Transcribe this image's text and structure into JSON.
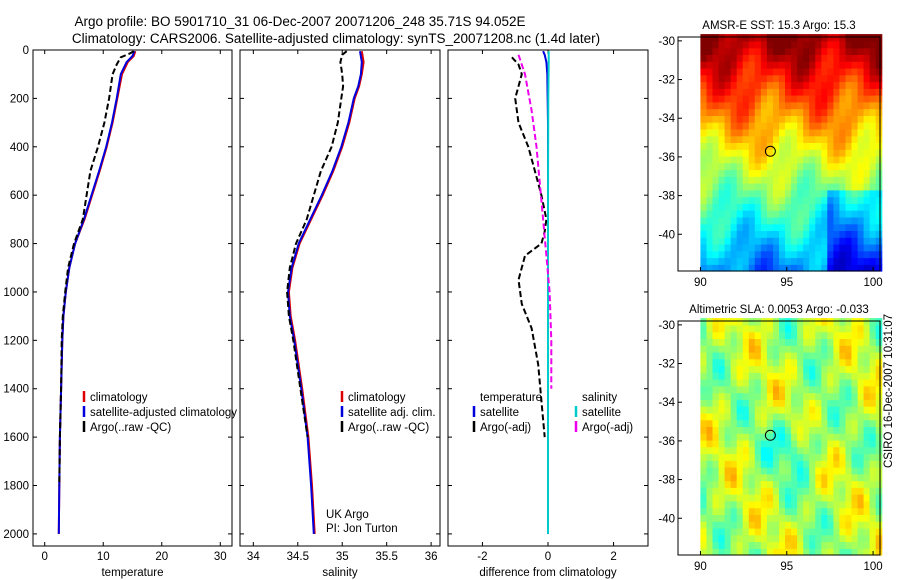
{
  "title": {
    "line1": "Argo profile: BO 5901710_31 06-Dec-2007 20071206_248 35.71S 94.052E",
    "line2": "Climatology: CARS2006. Satellite-adjusted climatology: synTS_20071208.nc (1.4d later)"
  },
  "colors": {
    "climatology": "#dd0000",
    "satellite": "#0000dd",
    "argo": "#000000",
    "sal_satellite": "#00cccc",
    "sal_argo": "#ee00ee"
  },
  "side_label": "CSIRO 16-Dec-2007 10:31:07",
  "chart_data": [
    {
      "id": "temperature",
      "type": "line",
      "xlabel": "temperature",
      "ylabel": "",
      "ylim": [
        0,
        2050
      ],
      "xlim": [
        -2,
        32
      ],
      "y_reversed": true,
      "yticks": [
        0,
        200,
        400,
        600,
        800,
        1000,
        1200,
        1400,
        1600,
        1800,
        2000
      ],
      "xticks": [
        0,
        10,
        20,
        30
      ],
      "show_yticklabels": true,
      "legend": {
        "placement": "lower-right",
        "entries": [
          "climatology",
          "satellite-adjusted climatology",
          "Argo(..raw -QC)"
        ]
      },
      "series": [
        {
          "name": "climatology",
          "color": "#dd0000",
          "style": "solid",
          "x": [
            15.5,
            15.2,
            14.2,
            13.2,
            12.4,
            11.6,
            10.6,
            9.4,
            8.1,
            6.8,
            5.2,
            4.2,
            3.6,
            3.2,
            3.0,
            2.8,
            2.6,
            2.5,
            2.4
          ],
          "y": [
            5,
            25,
            50,
            100,
            200,
            300,
            400,
            500,
            600,
            700,
            800,
            900,
            1000,
            1100,
            1200,
            1400,
            1600,
            1800,
            2000
          ]
        },
        {
          "name": "satellite-adjusted climatology",
          "color": "#0000dd",
          "style": "solid",
          "x": [
            15.3,
            15.0,
            14.0,
            13.0,
            12.3,
            11.5,
            10.5,
            9.3,
            8.0,
            6.7,
            5.2,
            4.2,
            3.6,
            3.2,
            3.0,
            2.8,
            2.6,
            2.5,
            2.4
          ],
          "y": [
            5,
            25,
            50,
            100,
            200,
            300,
            400,
            500,
            600,
            700,
            800,
            900,
            1000,
            1100,
            1200,
            1400,
            1600,
            1800,
            2000
          ]
        },
        {
          "name": "Argo(..raw -QC)",
          "color": "#000000",
          "style": "dashed",
          "x": [
            15.2,
            14.5,
            13.0,
            12.3,
            11.6,
            11.0,
            10.2,
            9.1,
            7.8,
            6.5,
            5.0,
            4.0,
            3.5,
            3.1,
            2.9,
            2.8,
            2.6,
            2.5
          ],
          "y": [
            5,
            15,
            30,
            60,
            100,
            200,
            300,
            400,
            500,
            700,
            800,
            900,
            1000,
            1100,
            1200,
            1400,
            1600,
            1800
          ]
        }
      ]
    },
    {
      "id": "salinity",
      "type": "line",
      "xlabel": "salinity",
      "ylabel": "",
      "ylim": [
        0,
        2050
      ],
      "xlim": [
        33.85,
        36.1
      ],
      "y_reversed": true,
      "yticks": [
        0,
        200,
        400,
        600,
        800,
        1000,
        1200,
        1400,
        1600,
        1800,
        2000
      ],
      "xticks": [
        34,
        34.5,
        35,
        35.5,
        36
      ],
      "show_yticklabels": false,
      "legend": {
        "placement": "lower-right",
        "entries": [
          "climatology",
          "satellite adj. clim.",
          "Argo(..raw -QC)"
        ]
      },
      "annotation": [
        "UK Argo",
        "PI: Jon Turton"
      ],
      "series": [
        {
          "name": "climatology",
          "color": "#dd0000",
          "style": "solid",
          "x": [
            35.22,
            35.24,
            35.22,
            35.19,
            35.14,
            35.08,
            35.0,
            34.9,
            34.78,
            34.65,
            34.52,
            34.44,
            34.4,
            34.42,
            34.47,
            34.55,
            34.62,
            34.66,
            34.69
          ],
          "y": [
            5,
            50,
            100,
            150,
            200,
            300,
            400,
            500,
            600,
            700,
            800,
            900,
            1000,
            1100,
            1200,
            1400,
            1600,
            1800,
            2000
          ]
        },
        {
          "name": "satellite adj. clim.",
          "color": "#0000dd",
          "style": "solid",
          "x": [
            35.2,
            35.22,
            35.21,
            35.18,
            35.13,
            35.07,
            34.99,
            34.89,
            34.77,
            34.64,
            34.51,
            34.43,
            34.39,
            34.41,
            34.46,
            34.54,
            34.61,
            34.65,
            34.68
          ],
          "y": [
            5,
            50,
            100,
            150,
            200,
            300,
            400,
            500,
            600,
            700,
            800,
            900,
            1000,
            1100,
            1200,
            1400,
            1600,
            1800,
            2000
          ]
        },
        {
          "name": "Argo(..raw -QC)",
          "color": "#000000",
          "style": "dashed",
          "x": [
            35.05,
            35.0,
            34.98,
            35.0,
            35.01,
            34.99,
            34.95,
            34.88,
            34.76,
            34.6,
            34.48,
            34.41,
            34.38,
            34.4,
            34.45,
            34.53,
            34.61
          ],
          "y": [
            5,
            20,
            50,
            100,
            150,
            200,
            300,
            400,
            500,
            700,
            800,
            900,
            1000,
            1100,
            1200,
            1400,
            1600
          ]
        }
      ]
    },
    {
      "id": "difference",
      "type": "line",
      "xlabel": "difference from climatology",
      "ylabel": "",
      "ylim": [
        0,
        2050
      ],
      "xlim": [
        -3.05,
        3.05
      ],
      "y_reversed": true,
      "yticks": [
        0,
        200,
        400,
        600,
        800,
        1000,
        1200,
        1400,
        1600,
        1800,
        2000
      ],
      "xticks": [
        -2,
        0,
        2
      ],
      "show_yticklabels": false,
      "legend": {
        "placement": "lower-right",
        "columns": [
          {
            "heading": "temperature",
            "entries": [
              "satellite",
              "Argo(-adj)"
            ]
          },
          {
            "heading": "salinity",
            "entries": [
              "satellite",
              "Argo(-adj)"
            ]
          }
        ]
      },
      "series": [
        {
          "name": "temperature satellite",
          "color": "#0000dd",
          "style": "solid",
          "x": [
            -0.15,
            -0.1,
            -0.05,
            -0.02,
            0.0,
            0.0,
            0.0,
            0.0
          ],
          "y": [
            5,
            20,
            50,
            100,
            300,
            800,
            1400,
            2000
          ]
        },
        {
          "name": "temperature Argo(-adj)",
          "color": "#000000",
          "style": "dashed",
          "x": [
            -1.1,
            -0.9,
            -0.8,
            -1.0,
            -0.9,
            -0.6,
            -0.4,
            -0.2,
            -0.05,
            -0.1,
            -0.2,
            -0.7,
            -0.9,
            -0.8,
            -0.5,
            -0.3,
            -0.2,
            -0.1
          ],
          "y": [
            30,
            60,
            100,
            200,
            300,
            400,
            500,
            600,
            700,
            750,
            800,
            850,
            950,
            1050,
            1150,
            1300,
            1450,
            1600
          ]
        },
        {
          "name": "salinity satellite",
          "color": "#00cccc",
          "style": "solid",
          "x": [
            0.02,
            0.02,
            0.01,
            0.0,
            0.0,
            0.0,
            0.0
          ],
          "y": [
            5,
            50,
            200,
            600,
            1000,
            1500,
            2000
          ]
        },
        {
          "name": "salinity Argo(-adj)",
          "color": "#ee00ee",
          "style": "dashed",
          "x": [
            -0.9,
            -0.7,
            -0.5,
            -0.35,
            -0.25,
            -0.15,
            -0.05,
            0.05,
            0.1,
            0.1
          ],
          "y": [
            20,
            100,
            250,
            400,
            550,
            700,
            850,
            1000,
            1200,
            1400
          ]
        }
      ]
    },
    {
      "id": "sst-map",
      "type": "heatmap",
      "title": "AMSR-E SST: 15.3 Argo: 15.3",
      "xticks": [
        90,
        95,
        100
      ],
      "yticks": [
        -30,
        -32,
        -34,
        -36,
        -38,
        -40
      ],
      "xlim": [
        88.7,
        100.4
      ],
      "ylim": [
        -41.9,
        -29.8
      ],
      "data_extent_x": [
        90,
        100.4
      ],
      "colormap": "jet",
      "marker": {
        "lon": 94.05,
        "lat": -35.71
      }
    },
    {
      "id": "sla-map",
      "type": "heatmap",
      "title": "Altimetric SLA: 0.0053 Argo: -0.033",
      "xticks": [
        90,
        95,
        100
      ],
      "yticks": [
        -30,
        -32,
        -34,
        -36,
        -38,
        -40
      ],
      "xlim": [
        88.7,
        100.4
      ],
      "ylim": [
        -41.9,
        -29.8
      ],
      "data_extent_x": [
        90,
        100.4
      ],
      "colormap": "jet",
      "marker": {
        "lon": 94.05,
        "lat": -35.71
      }
    }
  ]
}
